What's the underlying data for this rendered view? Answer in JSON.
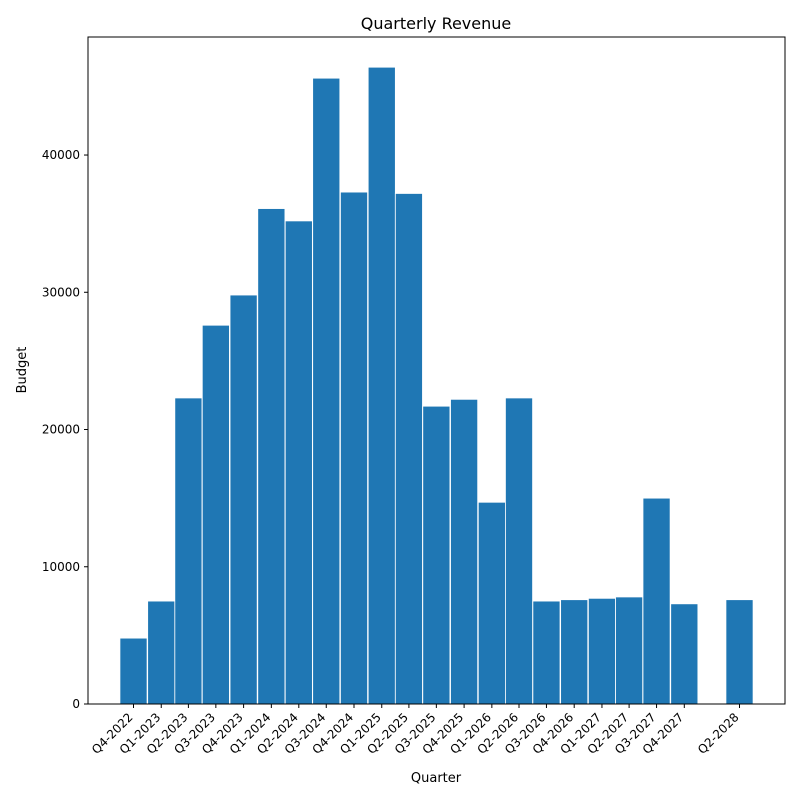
{
  "chart_data": {
    "type": "bar",
    "title": "Quarterly Revenue",
    "xlabel": "Quarter",
    "ylabel": "Budget",
    "categories": [
      "Q4-2022",
      "Q1-2023",
      "Q2-2023",
      "Q3-2023",
      "Q4-2023",
      "Q1-2024",
      "Q2-2024",
      "Q3-2024",
      "Q4-2024",
      "Q1-2025",
      "Q2-2025",
      "Q3-2025",
      "Q4-2025",
      "Q1-2026",
      "Q2-2026",
      "Q3-2026",
      "Q4-2026",
      "Q1-2027",
      "Q2-2027",
      "Q3-2027",
      "Q4-2027",
      "Q2-2028"
    ],
    "x": [
      "2022-10-01",
      "2023-01-01",
      "2023-04-01",
      "2023-07-01",
      "2023-10-01",
      "2024-01-01",
      "2024-04-01",
      "2024-07-01",
      "2024-10-01",
      "2025-01-01",
      "2025-04-01",
      "2025-07-01",
      "2025-10-01",
      "2026-01-01",
      "2026-04-01",
      "2026-07-01",
      "2026-10-01",
      "2027-01-01",
      "2027-04-01",
      "2027-07-01",
      "2027-10-01",
      "2028-04-01"
    ],
    "values": [
      4800,
      7500,
      22300,
      27600,
      29800,
      36100,
      35200,
      45600,
      37300,
      46400,
      37200,
      21700,
      22200,
      14700,
      22300,
      7500,
      7600,
      7700,
      7800,
      15000,
      7300,
      7600
    ],
    "ylim": [
      0,
      48600
    ],
    "yticks": [
      0,
      10000,
      20000,
      30000,
      40000
    ],
    "bar_color": "#1f77b4",
    "grid": false,
    "legend": "none"
  }
}
